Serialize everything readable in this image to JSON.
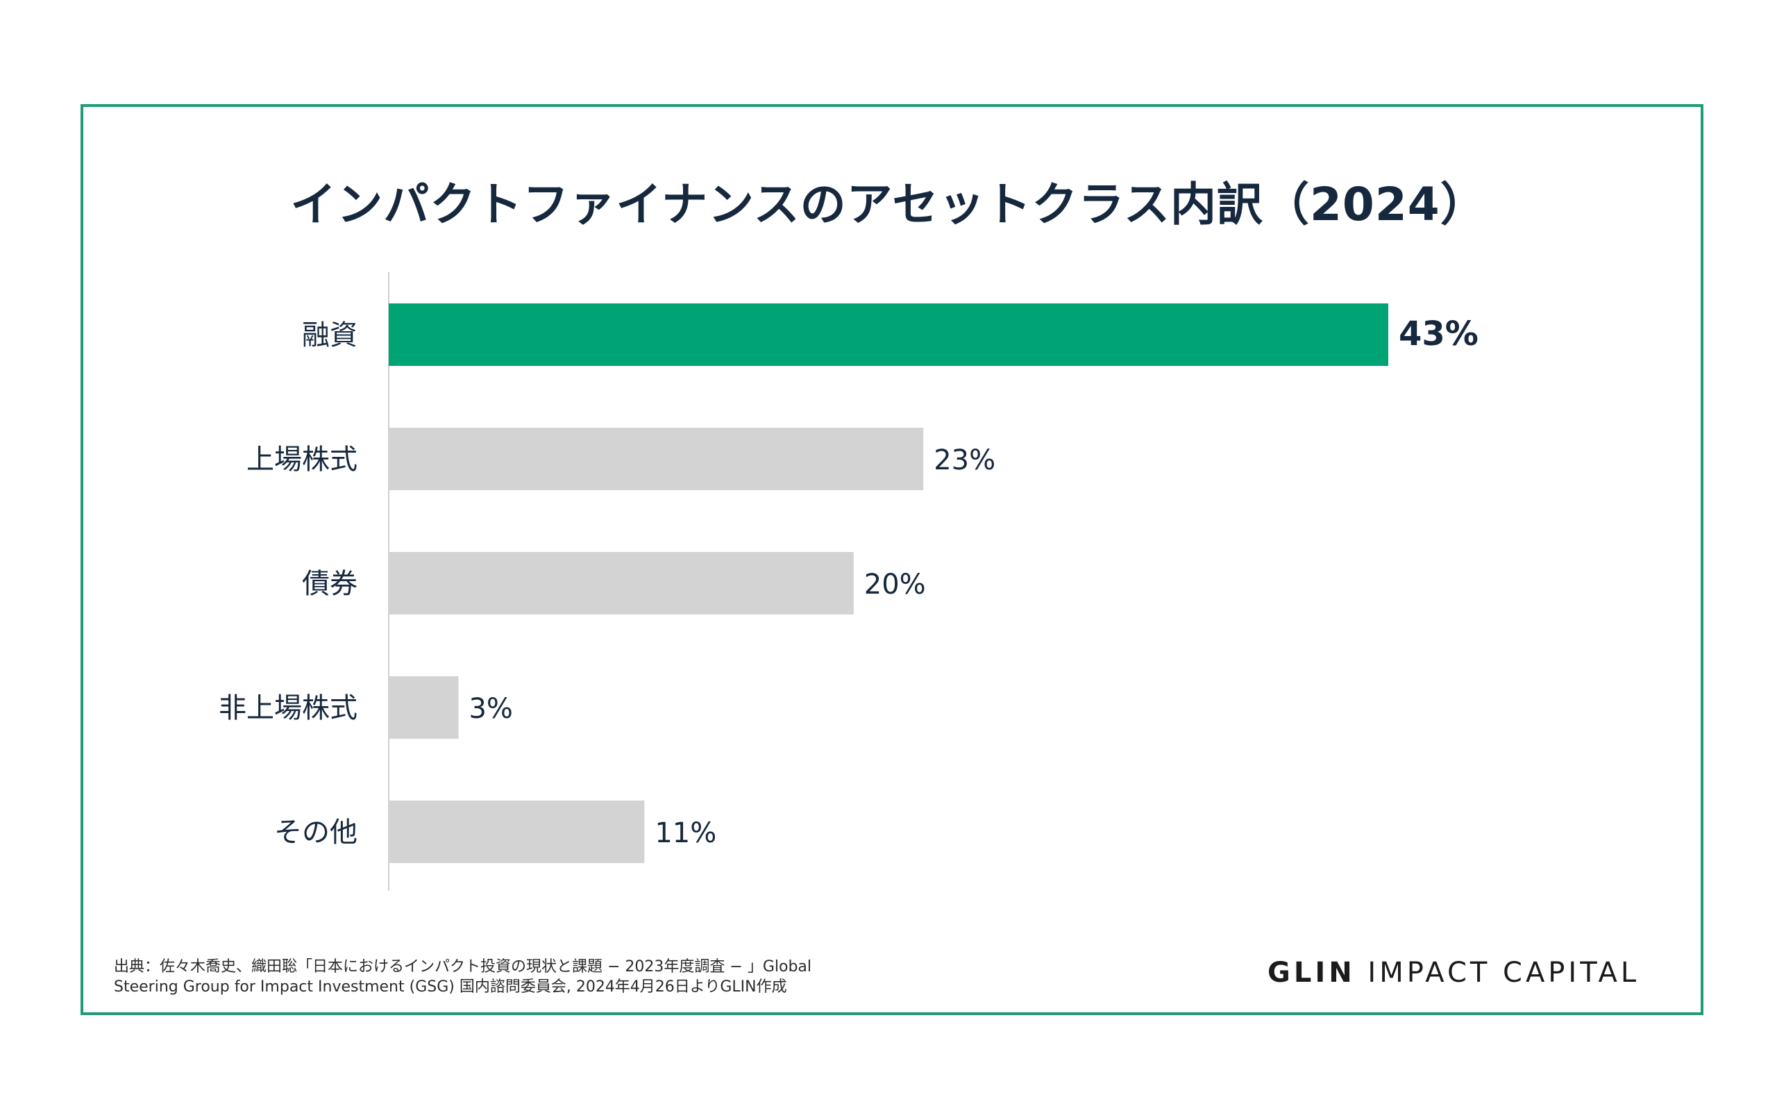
{
  "chart_data": {
    "type": "bar",
    "orientation": "horizontal",
    "title": "インパクトファイナンスのアセットクラス内訳（2024）",
    "categories": [
      "融資",
      "上場株式",
      "債券",
      "非上場株式",
      "その他"
    ],
    "values": [
      43,
      23,
      20,
      3,
      11
    ],
    "value_labels": [
      "43%",
      "23%",
      "20%",
      "3%",
      "11%"
    ],
    "unit": "%",
    "highlight_index": 0,
    "xlim": [
      0,
      43
    ],
    "grid": false,
    "legend": "none"
  },
  "colors": {
    "highlight": "#00a374",
    "bar": "#d3d3d3",
    "frame": "#1e9b78",
    "text": "#16283d"
  },
  "source": {
    "line1": "出典：佐々木喬史、織田聡「日本におけるインパクト投資の現状と課題 − 2023年度調査 − 」Global",
    "line2": "Steering Group for Impact Investment (GSG) 国内諮問委員会, 2024年4月26日よりGLIN作成"
  },
  "logo": {
    "brand": "GLIN",
    "rest": "IMPACT CAPITAL"
  }
}
